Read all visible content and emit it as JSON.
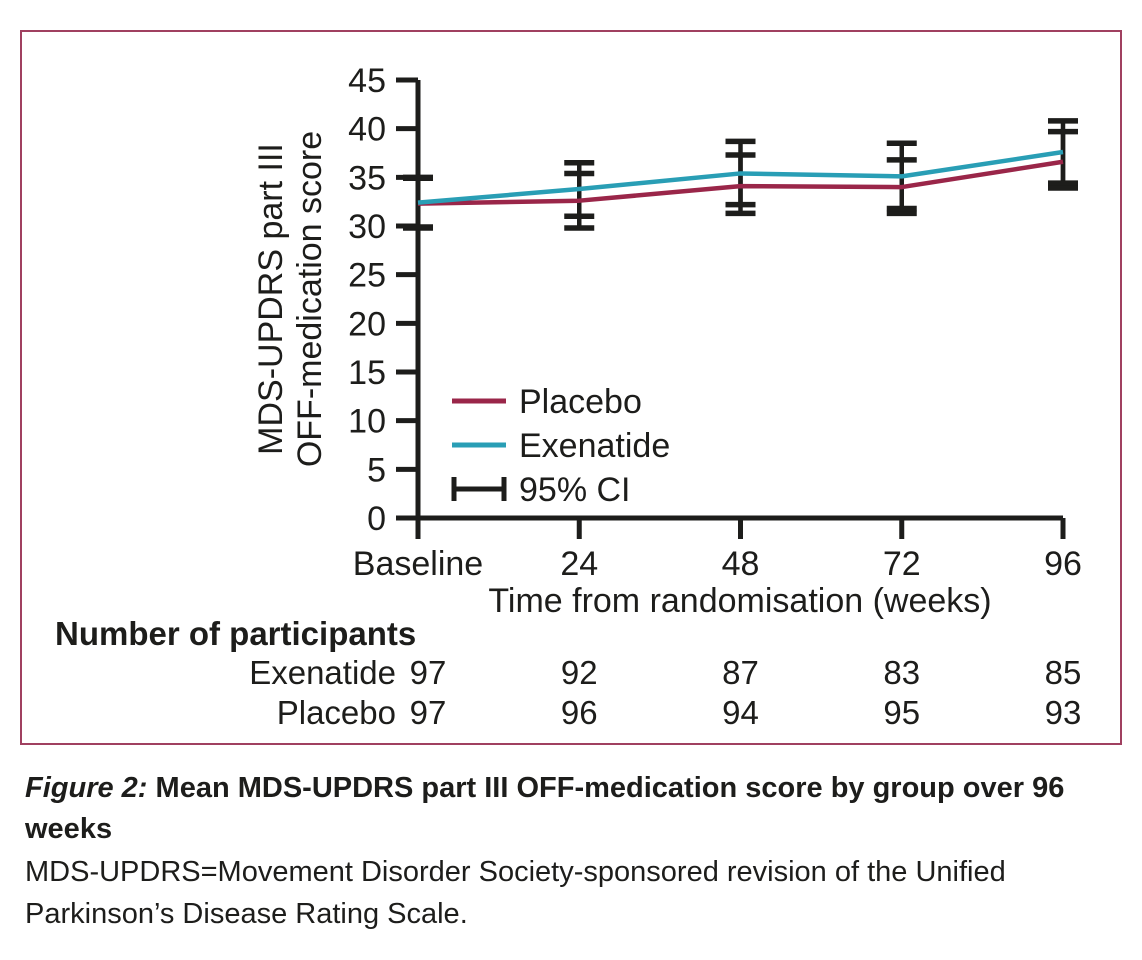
{
  "figure": {
    "caption_prefix": "Figure 2:",
    "caption_title": "Mean MDS-UPDRS part III OFF-medication score by group over 96 weeks",
    "footnote": "MDS-UPDRS=Movement Disorder Society-sponsored revision of the Unified Parkinson’s Disease Rating Scale."
  },
  "chart_data": {
    "type": "line",
    "x_label": "Time from randomisation (weeks)",
    "y_label_line1": "MDS-UPDRS part III",
    "y_label_line2": "OFF-medication score",
    "x_categories": [
      "Baseline",
      "24",
      "48",
      "72",
      "96"
    ],
    "ylim": [
      0,
      45
    ],
    "y_ticks": [
      0,
      5,
      10,
      15,
      20,
      25,
      30,
      35,
      40,
      45
    ],
    "grid": false,
    "legend_position": "inside-lower-left",
    "ci_label": "95% CI",
    "error_bar_color": "#1d1d1b",
    "series": [
      {
        "name": "Placebo",
        "color": "#9a2649",
        "values": [
          32.3,
          32.6,
          34.1,
          34.0,
          36.6
        ],
        "ci_low": [
          29.8,
          29.8,
          31.3,
          31.3,
          33.9
        ],
        "ci_high": [
          34.9,
          35.4,
          37.3,
          36.8,
          39.7
        ]
      },
      {
        "name": "Exenatide",
        "color": "#299eb5",
        "values": [
          32.4,
          33.8,
          35.4,
          35.1,
          37.6
        ],
        "ci_low": [
          29.9,
          31.0,
          32.2,
          31.8,
          34.4
        ],
        "ci_high": [
          35.0,
          36.5,
          38.7,
          38.5,
          40.8
        ]
      }
    ]
  },
  "participants": {
    "heading": "Number of participants",
    "rows": [
      {
        "label": "Exenatide",
        "values": [
          97,
          92,
          87,
          83,
          85
        ]
      },
      {
        "label": "Placebo",
        "values": [
          97,
          96,
          94,
          95,
          93
        ]
      }
    ]
  },
  "colors": {
    "border": "#a04060",
    "axis": "#1d1d1b",
    "text": "#1d1d1b"
  }
}
